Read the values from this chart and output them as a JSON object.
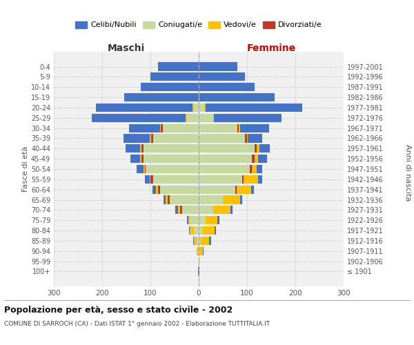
{
  "age_groups": [
    "100+",
    "95-99",
    "90-94",
    "85-89",
    "80-84",
    "75-79",
    "70-74",
    "65-69",
    "60-64",
    "55-59",
    "50-54",
    "45-49",
    "40-44",
    "35-39",
    "30-34",
    "25-29",
    "20-24",
    "15-19",
    "10-14",
    "5-9",
    "0-4"
  ],
  "birth_years": [
    "≤ 1901",
    "1902-1906",
    "1907-1911",
    "1912-1916",
    "1917-1921",
    "1922-1926",
    "1927-1931",
    "1932-1936",
    "1937-1941",
    "1942-1946",
    "1947-1951",
    "1952-1956",
    "1957-1961",
    "1962-1966",
    "1967-1971",
    "1972-1976",
    "1977-1981",
    "1982-1986",
    "1987-1991",
    "1992-1996",
    "1997-2001"
  ],
  "male": {
    "celibi": [
      1,
      0,
      1,
      1,
      2,
      3,
      5,
      5,
      8,
      10,
      15,
      20,
      30,
      55,
      65,
      195,
      200,
      155,
      120,
      100,
      85
    ],
    "coniugati": [
      0,
      0,
      2,
      5,
      10,
      18,
      35,
      60,
      80,
      95,
      110,
      115,
      115,
      95,
      75,
      25,
      10,
      0,
      0,
      0,
      0
    ],
    "vedovi": [
      0,
      0,
      2,
      5,
      8,
      3,
      5,
      3,
      3,
      2,
      2,
      2,
      2,
      2,
      2,
      2,
      3,
      0,
      0,
      0,
      0
    ],
    "divorziati": [
      0,
      0,
      0,
      0,
      0,
      0,
      3,
      5,
      5,
      5,
      2,
      4,
      4,
      4,
      3,
      0,
      0,
      0,
      0,
      0,
      0
    ]
  },
  "female": {
    "nubili": [
      1,
      1,
      2,
      3,
      3,
      4,
      5,
      5,
      6,
      8,
      12,
      18,
      22,
      30,
      60,
      140,
      200,
      155,
      115,
      95,
      80
    ],
    "coniugate": [
      0,
      0,
      2,
      4,
      8,
      14,
      30,
      50,
      75,
      90,
      105,
      110,
      115,
      95,
      80,
      30,
      12,
      2,
      0,
      0,
      0
    ],
    "vedove": [
      0,
      1,
      6,
      18,
      25,
      25,
      35,
      35,
      30,
      30,
      10,
      8,
      5,
      2,
      2,
      2,
      2,
      0,
      0,
      0,
      0
    ],
    "divorziate": [
      0,
      0,
      0,
      0,
      0,
      0,
      0,
      0,
      3,
      3,
      5,
      5,
      5,
      5,
      3,
      0,
      0,
      0,
      0,
      0,
      0
    ]
  },
  "colors": {
    "celibi": "#4472c4",
    "coniugati": "#c5d9a0",
    "vedovi": "#ffc000",
    "divorziati": "#c0392b"
  },
  "xlim": 300,
  "title": "Popolazione per età, sesso e stato civile - 2002",
  "subtitle": "COMUNE DI SARROCH (CA) - Dati ISTAT 1° gennaio 2002 - Elaborazione TUTTITALIA.IT",
  "ylabel_left": "Fasce di età",
  "ylabel_right": "Anni di nascita",
  "xlabel_left": "Maschi",
  "xlabel_right": "Femmine",
  "bg_color": "#f0f0f0",
  "grid_color": "#cccccc",
  "femmine_color": "#cc0000"
}
